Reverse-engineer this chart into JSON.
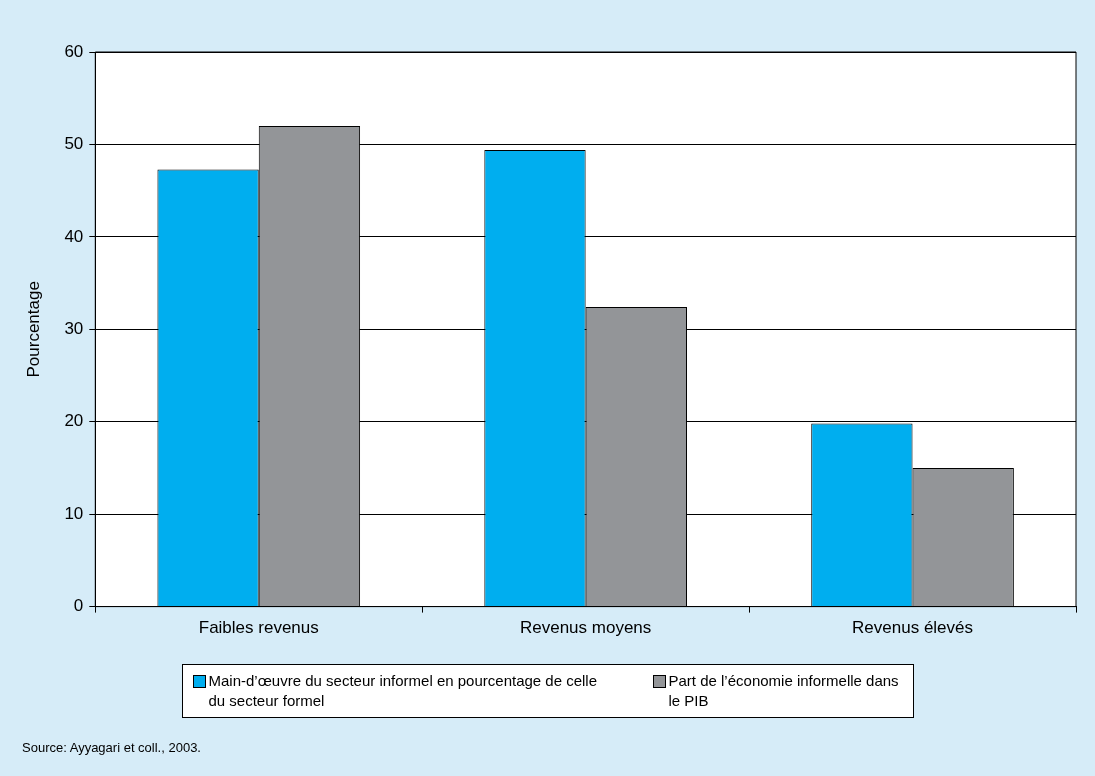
{
  "chart_data": {
    "type": "bar",
    "ylabel": "Pourcentage",
    "categories": [
      "Faibles revenus",
      "Revenus moyens",
      "Revenus élevés"
    ],
    "series": [
      {
        "name": "Main-d’œuvre du secteur informel en pourcentage de celle du secteur formel",
        "color": "#00aeef",
        "values": [
          47.3,
          49.4,
          19.8
        ]
      },
      {
        "name": "Part de l’économie informelle dans le PIB",
        "color": "#939598",
        "values": [
          52,
          32.4,
          15
        ]
      }
    ],
    "ylim": [
      0,
      60
    ],
    "yticks": [
      0,
      10,
      20,
      30,
      40,
      50,
      60
    ],
    "grid": "y",
    "legend": "bottom",
    "annotations": [
      "Source: Ayyagari et coll., 2003."
    ]
  }
}
